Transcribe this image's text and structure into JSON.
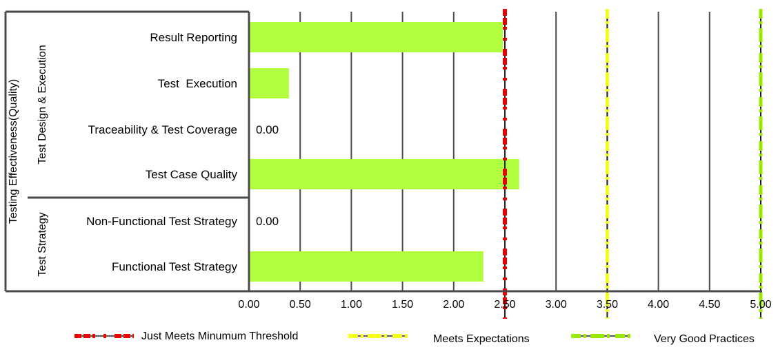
{
  "chart_data": {
    "type": "bar",
    "orientation": "horizontal",
    "outer_group": "Testing Effectiveness(Quality)",
    "groups": [
      {
        "name": "Test Design & Execution",
        "categories": [
          "Result Reporting",
          "Test  Execution",
          "Traceability & Test Coverage",
          "Test Case Quality"
        ]
      },
      {
        "name": "Test Strategy",
        "categories": [
          "Non-Functional Test Strategy",
          "Functional Test Strategy"
        ]
      }
    ],
    "categories": [
      "Result Reporting",
      "Test  Execution",
      "Traceability & Test Coverage",
      "Test Case Quality",
      "Non-Functional Test Strategy",
      "Functional Test Strategy"
    ],
    "values": [
      2.48,
      0.39,
      0.0,
      2.64,
      0.0,
      2.29
    ],
    "data_labels": [
      "",
      "",
      "0.00",
      "",
      "0.00",
      ""
    ],
    "xlim": [
      0,
      5
    ],
    "x_ticks": [
      "0.00",
      "0.50",
      "1.00",
      "1.50",
      "2.00",
      "2.50",
      "3.00",
      "3.50",
      "4.00",
      "4.50",
      "5.00"
    ],
    "grid": true,
    "bar_color": "#b2ff40",
    "thresholds": [
      {
        "name": "Just Meets Minumum Threshold",
        "value": 2.5,
        "color": "#ee0000"
      },
      {
        "name": "Meets Expectations",
        "value": 3.5,
        "color": "#f5ff1a"
      },
      {
        "name": "Very Good Practices",
        "value": 5.0,
        "color": "#9be800"
      }
    ],
    "legend_position": "bottom"
  }
}
